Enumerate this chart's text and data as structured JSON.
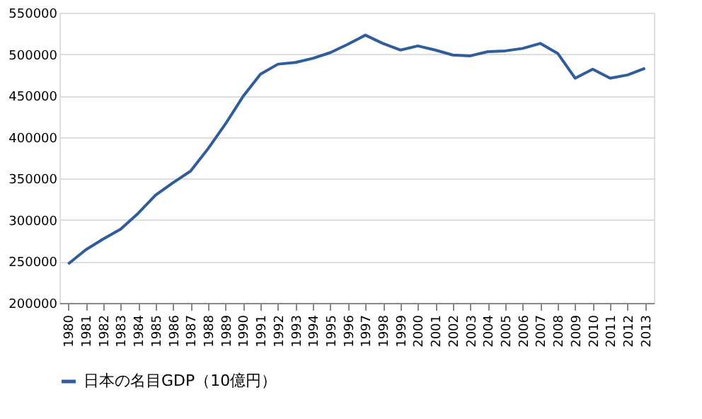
{
  "chart_data": {
    "type": "line",
    "categories": [
      "1980",
      "1981",
      "1982",
      "1983",
      "1984",
      "1985",
      "1986",
      "1987",
      "1988",
      "1989",
      "1990",
      "1991",
      "1992",
      "1993",
      "1994",
      "1995",
      "1996",
      "1997",
      "1998",
      "1999",
      "2000",
      "2001",
      "2002",
      "2003",
      "2004",
      "2005",
      "2006",
      "2007",
      "2008",
      "2009",
      "2010",
      "2011",
      "2012",
      "2013"
    ],
    "series": [
      {
        "name": "日本の名目GDP（10億円）",
        "color": "#2f5c9a",
        "values": [
          247000,
          264000,
          277000,
          289000,
          308000,
          330000,
          345000,
          359000,
          386000,
          416000,
          449000,
          476000,
          488000,
          490000,
          495000,
          502000,
          512000,
          523000,
          513000,
          505000,
          510000,
          505000,
          499000,
          498000,
          503000,
          504000,
          507000,
          513000,
          501000,
          471000,
          482000,
          471000,
          475000,
          483000
        ]
      }
    ],
    "ylim": [
      200000,
      550000
    ],
    "yticks": [
      200000,
      250000,
      300000,
      350000,
      400000,
      450000,
      500000,
      550000
    ],
    "grid": "y",
    "legend": "bottom",
    "marker": "none",
    "line_style": "solid"
  }
}
